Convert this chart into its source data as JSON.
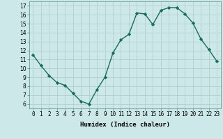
{
  "x": [
    0,
    1,
    2,
    3,
    4,
    5,
    6,
    7,
    8,
    9,
    10,
    11,
    12,
    13,
    14,
    15,
    16,
    17,
    18,
    19,
    20,
    21,
    22,
    23
  ],
  "y": [
    11.5,
    10.3,
    9.2,
    8.4,
    8.1,
    7.2,
    6.3,
    6.0,
    7.6,
    9.0,
    11.7,
    13.2,
    13.8,
    16.2,
    16.1,
    14.9,
    16.5,
    16.8,
    16.8,
    16.1,
    15.1,
    13.3,
    12.1,
    10.8
  ],
  "line_color": "#1a6b5a",
  "marker": "D",
  "marker_size": 2.2,
  "bg_color": "#cce8e8",
  "grid_color": "#b0d0d0",
  "xlabel": "Humidex (Indice chaleur)",
  "ylabel_ticks": [
    6,
    7,
    8,
    9,
    10,
    11,
    12,
    13,
    14,
    15,
    16,
    17
  ],
  "ylim": [
    5.5,
    17.5
  ],
  "xlim": [
    -0.5,
    23.5
  ],
  "xticks": [
    0,
    1,
    2,
    3,
    4,
    5,
    6,
    7,
    8,
    9,
    10,
    11,
    12,
    13,
    14,
    15,
    16,
    17,
    18,
    19,
    20,
    21,
    22,
    23
  ],
  "xlabel_fontsize": 6.5,
  "tick_fontsize": 5.5,
  "line_width": 1.0
}
